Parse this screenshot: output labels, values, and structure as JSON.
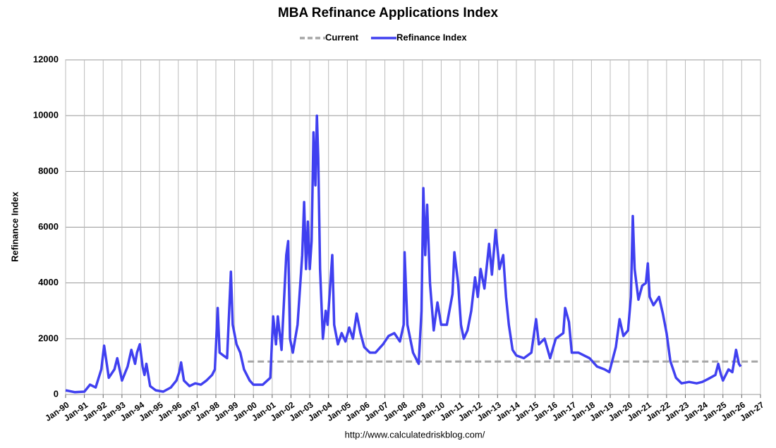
{
  "chart_data": {
    "type": "line",
    "title": "MBA Refinance Applications Index",
    "y_label": "Refinance Index",
    "source": "http://www.calculatedriskblog.com/",
    "xlim": [
      1990,
      2027
    ],
    "ylim": [
      0,
      12000
    ],
    "yticks": [
      0,
      2000,
      4000,
      6000,
      8000,
      10000,
      12000
    ],
    "xticks": [
      {
        "value": 1990,
        "label": "Jan-90"
      },
      {
        "value": 1991,
        "label": "Jan-91"
      },
      {
        "value": 1992,
        "label": "Jan-92"
      },
      {
        "value": 1993,
        "label": "Jan-93"
      },
      {
        "value": 1994,
        "label": "Jan-94"
      },
      {
        "value": 1995,
        "label": "Jan-95"
      },
      {
        "value": 1996,
        "label": "Jan-96"
      },
      {
        "value": 1997,
        "label": "Jan-97"
      },
      {
        "value": 1998,
        "label": "Jan-98"
      },
      {
        "value": 1999,
        "label": "Jan-99"
      },
      {
        "value": 2000,
        "label": "Jan-00"
      },
      {
        "value": 2001,
        "label": "Jan-01"
      },
      {
        "value": 2002,
        "label": "Jan-02"
      },
      {
        "value": 2003,
        "label": "Jan-03"
      },
      {
        "value": 2004,
        "label": "Jan-04"
      },
      {
        "value": 2005,
        "label": "Jan-05"
      },
      {
        "value": 2006,
        "label": "Jan-06"
      },
      {
        "value": 2007,
        "label": "Jan-07"
      },
      {
        "value": 2008,
        "label": "Jan-08"
      },
      {
        "value": 2009,
        "label": "Jan-09"
      },
      {
        "value": 2010,
        "label": "Jan-10"
      },
      {
        "value": 2011,
        "label": "Jan-11"
      },
      {
        "value": 2012,
        "label": "Jan-12"
      },
      {
        "value": 2013,
        "label": "Jan-13"
      },
      {
        "value": 2014,
        "label": "Jan-14"
      },
      {
        "value": 2015,
        "label": "Jan-15"
      },
      {
        "value": 2016,
        "label": "Jan-16"
      },
      {
        "value": 2017,
        "label": "Jan-17"
      },
      {
        "value": 2018,
        "label": "Jan-18"
      },
      {
        "value": 2019,
        "label": "Jan-19"
      },
      {
        "value": 2020,
        "label": "Jan-20"
      },
      {
        "value": 2021,
        "label": "Jan-21"
      },
      {
        "value": 2022,
        "label": "Jan-22"
      },
      {
        "value": 2023,
        "label": "Jan-23"
      },
      {
        "value": 2024,
        "label": "Jan-24"
      },
      {
        "value": 2025,
        "label": "Jan-25"
      },
      {
        "value": 2026,
        "label": "Jan-26"
      },
      {
        "value": 2027,
        "label": "Jan-27"
      }
    ],
    "grid": true,
    "series": [
      {
        "name": "Current",
        "color": "#a6a6a6",
        "dashed": true,
        "x": [
          1999.7,
          2027
        ],
        "values": [
          1180,
          1180
        ]
      },
      {
        "name": "Refinance Index",
        "color": "#4040f0",
        "dashed": false,
        "x": [
          1990,
          1990.5,
          1991,
          1991.3,
          1991.6,
          1991.9,
          1992.05,
          1992.3,
          1992.6,
          1992.75,
          1993,
          1993.3,
          1993.5,
          1993.7,
          1993.8,
          1993.95,
          1994.1,
          1994.2,
          1994.3,
          1994.5,
          1994.8,
          1995.2,
          1995.6,
          1995.9,
          1996.05,
          1996.15,
          1996.3,
          1996.6,
          1996.9,
          1997.2,
          1997.5,
          1997.8,
          1997.95,
          1998.1,
          1998.2,
          1998.4,
          1998.6,
          1998.8,
          1998.9,
          1999.1,
          1999.3,
          1999.5,
          1999.8,
          2000,
          2000.5,
          2000.9,
          2001.05,
          2001.2,
          2001.3,
          2001.5,
          2001.75,
          2001.85,
          2001.95,
          2002.1,
          2002.35,
          2002.6,
          2002.7,
          2002.8,
          2002.9,
          2003,
          2003.1,
          2003.2,
          2003.3,
          2003.38,
          2003.45,
          2003.55,
          2003.7,
          2003.85,
          2003.95,
          2004.05,
          2004.2,
          2004.3,
          2004.5,
          2004.7,
          2004.9,
          2005.1,
          2005.3,
          2005.5,
          2005.7,
          2005.9,
          2006.2,
          2006.5,
          2006.9,
          2007.2,
          2007.5,
          2007.8,
          2008,
          2008.05,
          2008.2,
          2008.5,
          2008.8,
          2008.95,
          2009.05,
          2009.15,
          2009.25,
          2009.4,
          2009.6,
          2009.8,
          2010,
          2010.3,
          2010.6,
          2010.7,
          2010.9,
          2011.05,
          2011.2,
          2011.4,
          2011.6,
          2011.8,
          2011.95,
          2012.1,
          2012.3,
          2012.55,
          2012.7,
          2012.9,
          2013.1,
          2013.3,
          2013.45,
          2013.6,
          2013.8,
          2014,
          2014.4,
          2014.8,
          2015.05,
          2015.2,
          2015.5,
          2015.8,
          2016.1,
          2016.5,
          2016.6,
          2016.8,
          2016.95,
          2017.3,
          2017.6,
          2017.9,
          2018.3,
          2018.7,
          2018.95,
          2019.3,
          2019.5,
          2019.7,
          2019.95,
          2020.1,
          2020.2,
          2020.3,
          2020.5,
          2020.7,
          2020.9,
          2021,
          2021.1,
          2021.3,
          2021.6,
          2021.8,
          2022,
          2022.2,
          2022.5,
          2022.8,
          2023.2,
          2023.6,
          2023.9,
          2024.2,
          2024.6,
          2024.75,
          2024.9,
          2025,
          2025.3,
          2025.5,
          2025.7,
          2025.85,
          2025.95
        ],
        "values": [
          150,
          80,
          100,
          350,
          250,
          900,
          1750,
          600,
          900,
          1300,
          500,
          1000,
          1600,
          1100,
          1500,
          1800,
          1000,
          700,
          1100,
          300,
          150,
          100,
          250,
          500,
          800,
          1150,
          500,
          300,
          400,
          350,
          500,
          700,
          900,
          3100,
          1500,
          1400,
          1300,
          4400,
          2500,
          1800,
          1500,
          900,
          500,
          350,
          350,
          600,
          2800,
          1800,
          2800,
          1600,
          5000,
          5500,
          2000,
          1500,
          2500,
          5000,
          6900,
          4500,
          6200,
          4500,
          5500,
          9400,
          7500,
          10000,
          8500,
          4500,
          2000,
          3000,
          2500,
          3500,
          5000,
          2500,
          1800,
          2200,
          1900,
          2400,
          2000,
          2900,
          2200,
          1700,
          1500,
          1500,
          1800,
          2100,
          2200,
          1900,
          2500,
          5100,
          2500,
          1500,
          1100,
          3000,
          7400,
          5000,
          6800,
          4000,
          2300,
          3300,
          2500,
          2500,
          3600,
          5100,
          4000,
          2500,
          2000,
          2300,
          3000,
          4200,
          3500,
          4500,
          3800,
          5400,
          4300,
          5900,
          4500,
          5000,
          3500,
          2500,
          1600,
          1400,
          1300,
          1500,
          2700,
          1800,
          2000,
          1300,
          2000,
          2200,
          3100,
          2600,
          1500,
          1500,
          1400,
          1300,
          1000,
          900,
          800,
          1700,
          2700,
          2100,
          2300,
          3500,
          6400,
          4500,
          3400,
          3900,
          4000,
          4700,
          3500,
          3200,
          3500,
          2900,
          2200,
          1200,
          600,
          400,
          450,
          400,
          450,
          550,
          700,
          1100,
          700,
          500,
          900,
          800,
          1600,
          1100,
          1000
        ]
      }
    ]
  }
}
